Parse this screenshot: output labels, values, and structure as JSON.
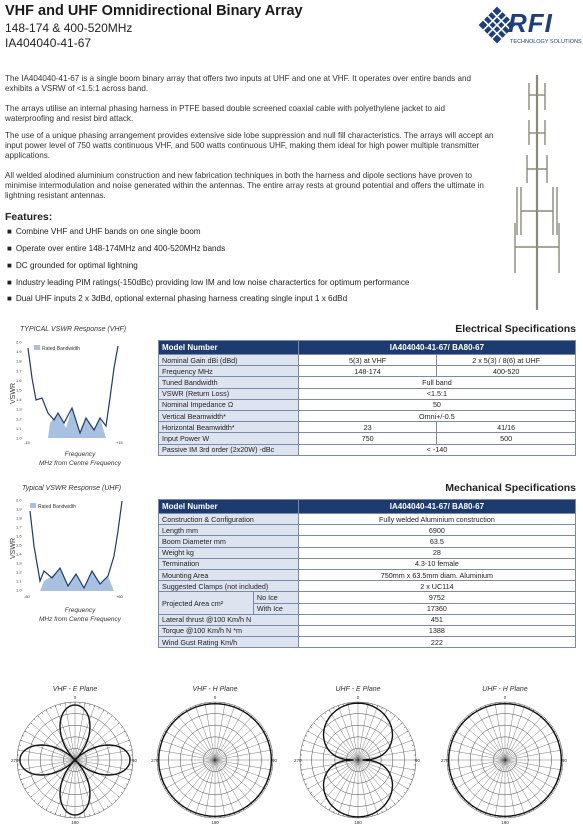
{
  "header": {
    "title": "VHF and UHF Omnidirectional Binary Array",
    "freq": "148-174 & 400-520MHz",
    "model": "IA404040-41-67",
    "logo_text": "RFI",
    "logo_tag": "TECHNOLOGY SOLUTIONS"
  },
  "description": [
    "The IA404040-41-67 is a single boom binary array that offers two inputs at UHF and one at VHF. It operates over entire bands and exhibits a VSRW of <1.5:1 across band.",
    "The arrays utilise an internal phasing harness in PTFE based double screened coaxial cable with polyethylene jacket to aid waterproofing and resist bird attack.",
    "The use of a unique phasing arrangement provides extensive side lobe suppression and null fill characteristics. The arrays will accept an input power level of 750 watts continuous VHF, and 500 watts continuous UHF, making them ideal for high power multiple transmitter applications.",
    "All welded alodined aluminium construction and new fabrication techniques in both the harness and dipole sections have proven to minimise intermodulation and noise generated within the antennas. The entire array rests at ground potential and offers the ultimate in lightning resistant antennas."
  ],
  "features": {
    "heading": "Features:",
    "items": [
      "Combine VHF and UHF bands on one single boom",
      "Operate over entire 148-174MHz and 400-520MHz bands",
      "DC grounded for optimal lightning",
      "Industry leading PIM ratings(-150dBc) providing low IM and low noise charactertics for optimum performance",
      "Dual UHF inputs 2 x 3dBd, optional external phasing harness creating single input 1 x 6dBd"
    ]
  },
  "vswr_vhf": {
    "title": "TYPICAL VSWR Response (VHF)",
    "legend": "Rated Bandwidth",
    "ylabel": "VSWR",
    "xlabel1": "Frequency",
    "xlabel2": "MHz from Centre Frequency",
    "yticks": [
      "2.0",
      "1.9",
      "1.8",
      "1.7",
      "1.6",
      "1.5",
      "1.4",
      "1.3",
      "1.2",
      "1.1",
      "1.0"
    ],
    "xmin": "-15",
    "xmax": "+15"
  },
  "vswr_uhf": {
    "title": "Typical VSWR Response (UHF)",
    "legend": "Rated Bandwidth",
    "ylabel": "VSWR",
    "xlabel1": "Frequency",
    "xlabel2": "MHz from Centre Frequency",
    "yticks": [
      "2.0",
      "1.9",
      "1.8",
      "1.7",
      "1.6",
      "1.5",
      "1.4",
      "1.3",
      "1.2",
      "1.1",
      "1.0"
    ],
    "xmin": "-60",
    "xmax": "+60"
  },
  "electrical": {
    "title": "Electrical Specifications",
    "header": [
      "Model Number",
      "IA404040-41-67/ BA80-67"
    ],
    "rows": [
      {
        "label": "Nominal Gain dBi (dBd)",
        "vals": [
          "5(3) at VHF",
          "2 x 5(3) / 8(6) at UHF"
        ]
      },
      {
        "label": "Frequency MHz",
        "vals": [
          "148-174",
          "400-520"
        ]
      },
      {
        "label": "Tuned Bandwidth",
        "span": "Full band"
      },
      {
        "label": "VSWR (Return Loss)",
        "span": "<1.5:1"
      },
      {
        "label": "Nominal Impedance Ω",
        "span": "50"
      },
      {
        "label": "Vertical Beamwidth*",
        "span": "Omni+/-0.5"
      },
      {
        "label": "Horizontal Beamwidth*",
        "vals": [
          "23",
          "41/16"
        ]
      },
      {
        "label": "Input Power W",
        "vals": [
          "750",
          "500"
        ]
      },
      {
        "label": "Passive IM 3rd order (2x20W) -dBc",
        "span": "< -140"
      }
    ]
  },
  "mechanical": {
    "title": "Mechanical Specifications",
    "header": [
      "Model Number",
      "IA404040-41-67/ BA80-67"
    ],
    "rows": [
      {
        "label": "Construction & Configuration",
        "span": "Fully welded Aluminium construction"
      },
      {
        "label": "Length mm",
        "span": "6900"
      },
      {
        "label": "Boom Diameter mm",
        "span": "63.5"
      },
      {
        "label": "Weight kg",
        "span": "28"
      },
      {
        "label": "Termination",
        "span": "4.3-10 female"
      },
      {
        "label": "Mounting Area",
        "span": "750mm x 63.5mm diam. Aluminium"
      },
      {
        "label": "Suggested Clamps (not included)",
        "span": "2 x UC114"
      }
    ],
    "projected": {
      "label": "Projected Area cm²",
      "sub": [
        [
          "No Ice",
          "9752"
        ],
        [
          "With Ice",
          "17360"
        ]
      ]
    },
    "rows2": [
      {
        "label": "Lateral thrust @100 Km/h N",
        "span": "451"
      },
      {
        "label": "Torque @100 Km/h N *m",
        "span": "1388"
      },
      {
        "label": "Wind Gust Rating Km/h",
        "span": "222"
      }
    ]
  },
  "polar": {
    "labels": [
      "VHF - E Plane",
      "VHF - H Plane",
      "UHF - E Plane",
      "UHF - H Plane"
    ],
    "angles": [
      "0",
      "90",
      "180",
      "270"
    ]
  },
  "colors": {
    "accent": "#1d3b6f",
    "label_bg": "#dde3ef",
    "fill": "#a9c1e0"
  }
}
